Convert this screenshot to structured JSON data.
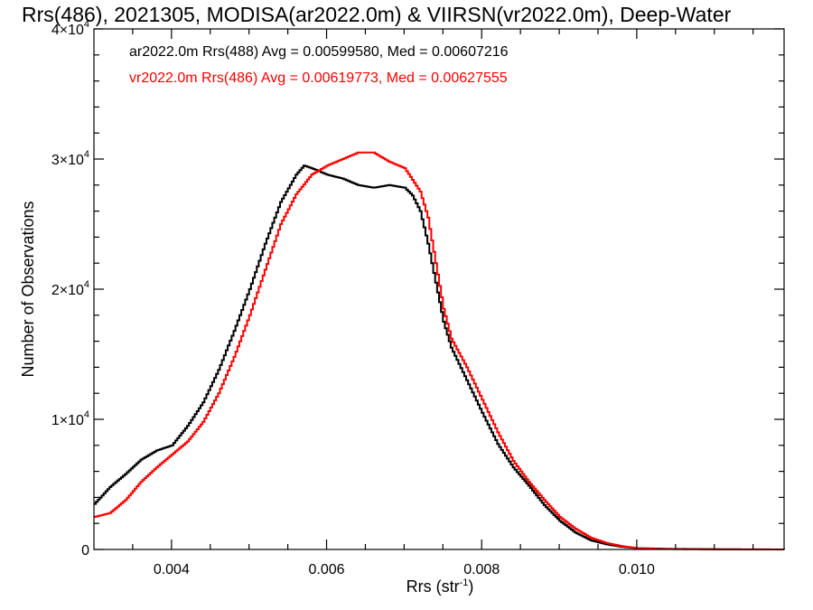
{
  "chart_data": {
    "type": "line",
    "title": "Rrs(486), 2021305, MODISA(ar2022.0m) & VIIRSN(vr2022.0m), Deep-Water",
    "xlabel": "Rrs (str",
    "xlabel_sup": "-1",
    "xlabel_close": ")",
    "ylabel": "Number of Observations",
    "xlim": [
      0.003,
      0.0119
    ],
    "ylim": [
      0,
      40000
    ],
    "x_ticks": [
      {
        "value": 0.004,
        "label": "0.004"
      },
      {
        "value": 0.006,
        "label": "0.006"
      },
      {
        "value": 0.008,
        "label": "0.008"
      },
      {
        "value": 0.01,
        "label": "0.010"
      }
    ],
    "y_ticks": [
      {
        "value": 0,
        "label": "0",
        "sup": ""
      },
      {
        "value": 10000,
        "label": "1×10",
        "sup": "4"
      },
      {
        "value": 20000,
        "label": "2×10",
        "sup": "4"
      },
      {
        "value": 30000,
        "label": "3×10",
        "sup": "4"
      },
      {
        "value": 40000,
        "label": "4×10",
        "sup": "4"
      }
    ],
    "colors": {
      "series_black": "#000000",
      "series_red": "#ff0000"
    },
    "series": [
      {
        "name": "ar2022.0m Rrs(488) Avg = 0.00599580, Med = 0.00607216",
        "color": "#000000",
        "x": [
          0.003,
          0.0032,
          0.0034,
          0.0036,
          0.0038,
          0.004,
          0.0042,
          0.0044,
          0.0046,
          0.0048,
          0.005,
          0.0052,
          0.0054,
          0.0056,
          0.0057,
          0.0058,
          0.006,
          0.0062,
          0.0064,
          0.0066,
          0.0068,
          0.007,
          0.0071,
          0.0072,
          0.0073,
          0.0074,
          0.0075,
          0.0076,
          0.0078,
          0.008,
          0.0082,
          0.0084,
          0.0086,
          0.0088,
          0.009,
          0.0092,
          0.0094,
          0.0096,
          0.0098,
          0.01,
          0.0104,
          0.011,
          0.0119
        ],
        "y": [
          3500,
          4800,
          5800,
          6900,
          7600,
          8000,
          9500,
          11300,
          13800,
          16800,
          20000,
          23500,
          26700,
          28800,
          29500,
          29300,
          28800,
          28500,
          28000,
          27800,
          28000,
          27800,
          27200,
          26000,
          23500,
          20500,
          17500,
          15500,
          13000,
          10500,
          8100,
          6300,
          4900,
          3400,
          2200,
          1300,
          700,
          400,
          200,
          100,
          50,
          20,
          0
        ]
      },
      {
        "name": "vr2022.0m Rrs(486) Avg = 0.00619773, Med = 0.00627555",
        "color": "#ff0000",
        "x": [
          0.003,
          0.0032,
          0.0034,
          0.0036,
          0.0038,
          0.004,
          0.0042,
          0.0044,
          0.0046,
          0.0048,
          0.005,
          0.0052,
          0.0054,
          0.0056,
          0.0058,
          0.006,
          0.0062,
          0.0064,
          0.0066,
          0.0068,
          0.007,
          0.0072,
          0.0073,
          0.0074,
          0.0075,
          0.0076,
          0.0078,
          0.008,
          0.0082,
          0.0084,
          0.0086,
          0.0088,
          0.009,
          0.0092,
          0.0094,
          0.0096,
          0.0098,
          0.01,
          0.0102,
          0.0106,
          0.0112,
          0.0119
        ],
        "y": [
          2500,
          2800,
          3800,
          5200,
          6300,
          7300,
          8300,
          9800,
          12000,
          14800,
          18000,
          21500,
          25000,
          27300,
          28800,
          29500,
          30000,
          30500,
          30500,
          29800,
          29300,
          27500,
          25500,
          22000,
          18500,
          16200,
          14000,
          11500,
          9000,
          6800,
          5200,
          3800,
          2500,
          1600,
          900,
          500,
          250,
          100,
          50,
          20,
          0,
          0
        ]
      }
    ]
  }
}
